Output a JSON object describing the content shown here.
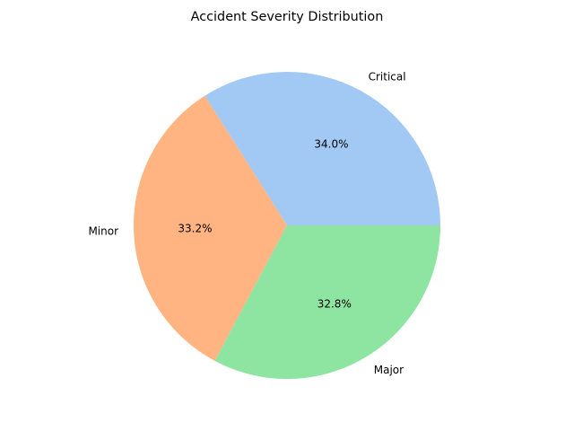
{
  "chart_data": {
    "type": "pie",
    "title": "Accident Severity Distribution",
    "labels": [
      "Critical",
      "Minor",
      "Major"
    ],
    "values": [
      34.0,
      33.2,
      32.8
    ],
    "pct_labels": [
      "34.0%",
      "33.2%",
      "32.8%"
    ],
    "colors": [
      "#a1c9f4",
      "#ffb482",
      "#8de5a1"
    ],
    "start_angle_deg": 0,
    "direction": "counterclockwise"
  }
}
